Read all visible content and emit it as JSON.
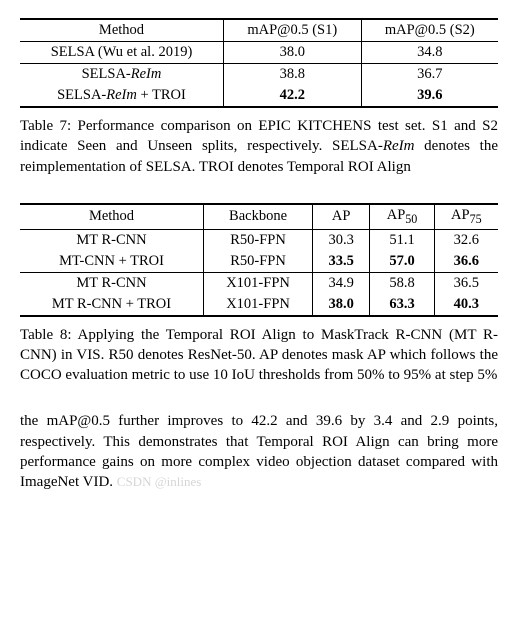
{
  "table7": {
    "headers": [
      "Method",
      "mAP@0.5 (S1)",
      "mAP@0.5 (S2)"
    ],
    "rows": [
      {
        "method_pre": "SELSA ",
        "method_ital": "",
        "method_paren": "(Wu et al. 2019)",
        "s1": "38.0",
        "s2": "34.8",
        "bold": false
      },
      {
        "method_pre": "SELSA-",
        "method_ital": "ReIm",
        "method_paren": "",
        "s1": "38.8",
        "s2": "36.7",
        "bold": false
      },
      {
        "method_pre": "SELSA-",
        "method_ital": "ReIm",
        "method_paren": " + TROI",
        "s1": "42.2",
        "s2": "39.6",
        "bold": true
      }
    ],
    "caption_prefix": "Table 7: Performance comparison on EPIC KITCHENS test set. S1 and S2 indicate Seen and Unseen splits, respectively. SELSA-",
    "caption_ital": "ReIm",
    "caption_suffix": " denotes the reimplementation of SELSA. TROI denotes Temporal ROI Align"
  },
  "table8": {
    "headers": [
      "Method",
      "Backbone",
      "AP",
      "AP",
      "AP"
    ],
    "header_subs": [
      "",
      "",
      "",
      "50",
      "75"
    ],
    "rows": [
      {
        "method": "MT R-CNN",
        "backbone": "R50-FPN",
        "ap": "30.3",
        "ap50": "51.1",
        "ap75": "32.6",
        "bold": false
      },
      {
        "method": "MT-CNN + TROI",
        "backbone": "R50-FPN",
        "ap": "33.5",
        "ap50": "57.0",
        "ap75": "36.6",
        "bold": true
      },
      {
        "method": "MT R-CNN",
        "backbone": "X101-FPN",
        "ap": "34.9",
        "ap50": "58.8",
        "ap75": "36.5",
        "bold": false
      },
      {
        "method": "MT R-CNN + TROI",
        "backbone": "X101-FPN",
        "ap": "38.0",
        "ap50": "63.3",
        "ap75": "40.3",
        "bold": true
      }
    ],
    "caption": "Table 8: Applying the Temporal ROI Align to MaskTrack R-CNN (MT R-CNN) in VIS. R50 denotes ResNet-50. AP denotes mask AP which follows the COCO evaluation metric to use 10 IoU thresholds from 50% to 95% at step 5%"
  },
  "body": {
    "text": "the mAP@0.5 further improves to 42.2 and 39.6 by 3.4 and 2.9 points, respectively. This demonstrates that Temporal ROI Align can bring more performance gains on more complex video objection dataset compared with ImageNet VID.",
    "watermark": "CSDN @inlines"
  }
}
